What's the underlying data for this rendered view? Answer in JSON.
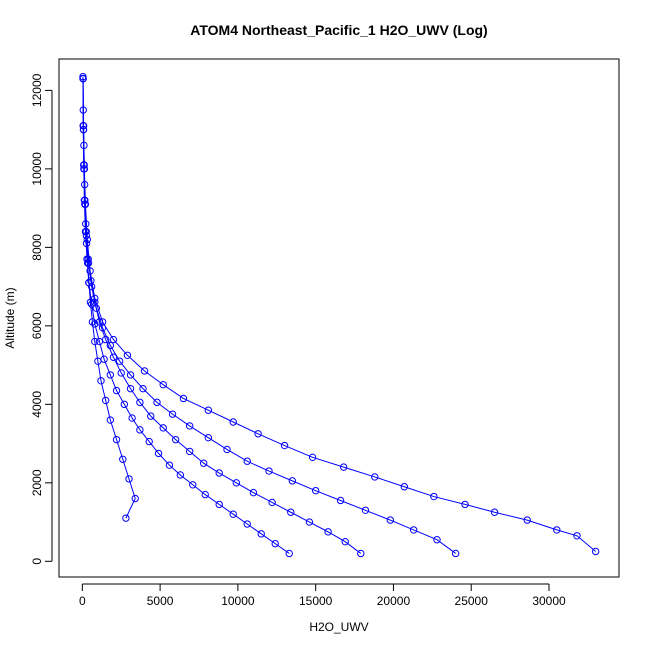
{
  "chart_data": {
    "type": "scatter",
    "title": "ATOM4 Northeast_Pacific_1 H2O_UWV (Log)",
    "xlabel": "H2O_UWV",
    "ylabel": "Altitude (m)",
    "xlim": [
      -1500,
      34500
    ],
    "ylim": [
      -400,
      12800
    ],
    "x_ticks": [
      0,
      5000,
      10000,
      15000,
      20000,
      25000,
      30000
    ],
    "x_tick_labels": [
      "0",
      "5000",
      "10000",
      "15000",
      "20000",
      "25000",
      "30000"
    ],
    "y_ticks": [
      0,
      2000,
      4000,
      6000,
      8000,
      10000,
      12000
    ],
    "y_tick_labels": [
      "0",
      "2000",
      "4000",
      "6000",
      "8000",
      "10000",
      "12000"
    ],
    "grid": false,
    "marker": "open-circle",
    "line_style": "solid",
    "color": "#0000ff",
    "series": [
      {
        "x": [
          33000,
          31800,
          30500,
          28600,
          26500,
          24600,
          22600,
          20700,
          18800,
          16800,
          14800,
          13000,
          11300,
          9700,
          8100,
          6500,
          5200,
          4000,
          2900,
          2000,
          1300,
          800,
          500,
          320,
          200,
          130,
          80,
          50
        ],
        "y": [
          250,
          650,
          800,
          1050,
          1250,
          1450,
          1650,
          1900,
          2150,
          2400,
          2650,
          2950,
          3250,
          3550,
          3850,
          4150,
          4500,
          4850,
          5250,
          5650,
          6100,
          6700,
          7400,
          8200,
          9100,
          10000,
          11000,
          12300
        ]
      },
      {
        "x": [
          24000,
          22800,
          21300,
          19800,
          18200,
          16600,
          15000,
          13500,
          12000,
          10600,
          9300,
          8100,
          6900,
          5800,
          4800,
          3900,
          3100,
          2400,
          1800,
          1300,
          900,
          600,
          400,
          260,
          160,
          100,
          70,
          50
        ],
        "y": [
          200,
          550,
          800,
          1050,
          1300,
          1550,
          1800,
          2050,
          2300,
          2550,
          2850,
          3150,
          3450,
          3750,
          4050,
          4400,
          4750,
          5100,
          5500,
          5950,
          6450,
          7000,
          7600,
          8300,
          9100,
          10000,
          11000,
          12300
        ]
      },
      {
        "x": [
          17900,
          16900,
          15800,
          14600,
          13400,
          12200,
          11000,
          9900,
          8800,
          7800,
          6900,
          6000,
          5200,
          4400,
          3700,
          3100,
          2500,
          2000,
          1500,
          1100,
          800,
          550,
          380,
          250,
          160,
          100,
          60,
          40
        ],
        "y": [
          200,
          500,
          750,
          1000,
          1250,
          1500,
          1750,
          2000,
          2250,
          2500,
          2800,
          3100,
          3400,
          3700,
          4050,
          4400,
          4800,
          5200,
          5650,
          6100,
          6600,
          7150,
          7700,
          8400,
          9200,
          10100,
          11100,
          12350
        ]
      },
      {
        "x": [
          13300,
          12400,
          11500,
          10600,
          9700,
          8800,
          7900,
          7100,
          6300,
          5600,
          4900,
          4300,
          3700,
          3200,
          2700,
          2200,
          1800,
          1400,
          1100,
          800,
          600,
          420,
          300,
          200,
          130,
          90,
          60,
          40
        ],
        "y": [
          200,
          450,
          700,
          950,
          1200,
          1450,
          1700,
          1950,
          2200,
          2450,
          2750,
          3050,
          3350,
          3650,
          4000,
          4350,
          4750,
          5150,
          5600,
          6050,
          6550,
          7100,
          7700,
          8400,
          9200,
          10100,
          11100,
          12300
        ]
      },
      {
        "x": [
          2800,
          3400,
          3000,
          2600,
          2200,
          1800,
          1500,
          1200,
          1000,
          800,
          650,
          520,
          420,
          340,
          270,
          220,
          180,
          150,
          120,
          100,
          80,
          60
        ],
        "y": [
          1100,
          1600,
          2100,
          2600,
          3100,
          3600,
          4100,
          4600,
          5100,
          5600,
          6100,
          6600,
          7100,
          7600,
          8100,
          8600,
          9100,
          9600,
          10100,
          10600,
          11100,
          11500
        ]
      }
    ]
  }
}
